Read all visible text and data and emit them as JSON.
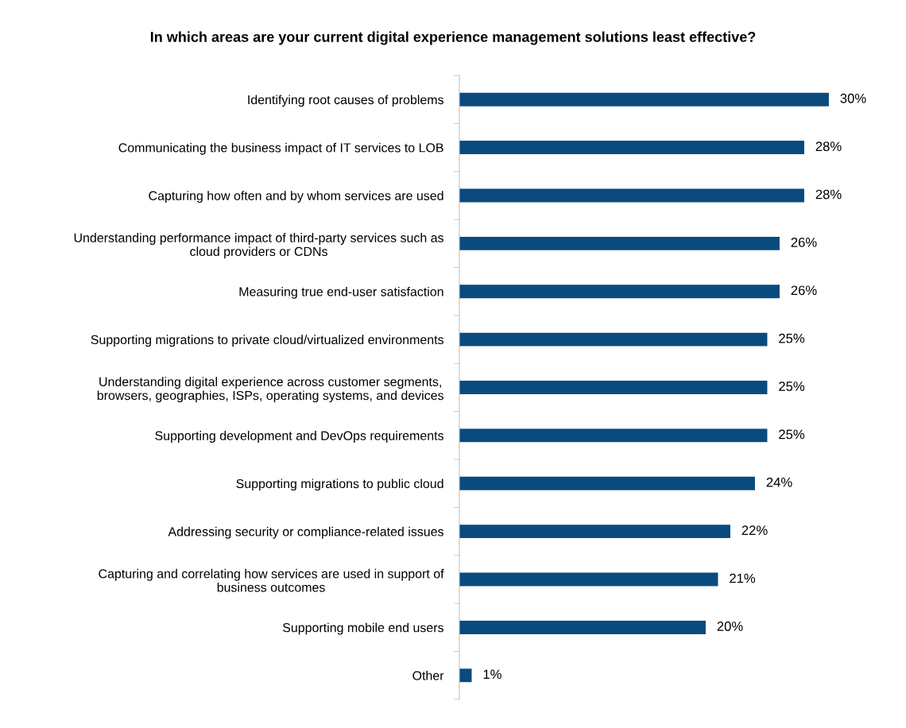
{
  "chart_data": {
    "type": "bar",
    "orientation": "horizontal",
    "title": "In which areas are your current digital experience management solutions least effective?",
    "categories": [
      "Identifying root causes of problems",
      "Communicating the business impact of IT services to LOB",
      "Capturing how often and by whom services are used",
      "Understanding performance impact of third-party services such as\ncloud providers or CDNs",
      "Measuring true end-user satisfaction",
      "Supporting migrations to private cloud/virtualized environments",
      "Understanding digital experience across customer segments,\nbrowsers, geographies, ISPs, operating systems, and devices",
      "Supporting development and DevOps requirements",
      "Supporting migrations to public cloud",
      "Addressing security or compliance-related issues",
      "Capturing and correlating how services are used in support of\nbusiness outcomes",
      "Supporting mobile end users",
      "Other"
    ],
    "values": [
      30,
      28,
      28,
      26,
      26,
      25,
      25,
      25,
      24,
      22,
      21,
      20,
      1
    ],
    "value_labels": [
      "30%",
      "28%",
      "28%",
      "26%",
      "26%",
      "25%",
      "25%",
      "25%",
      "24%",
      "22%",
      "21%",
      "20%",
      "1%"
    ],
    "color": "#0b4a7d",
    "grid": false,
    "legend": false
  }
}
